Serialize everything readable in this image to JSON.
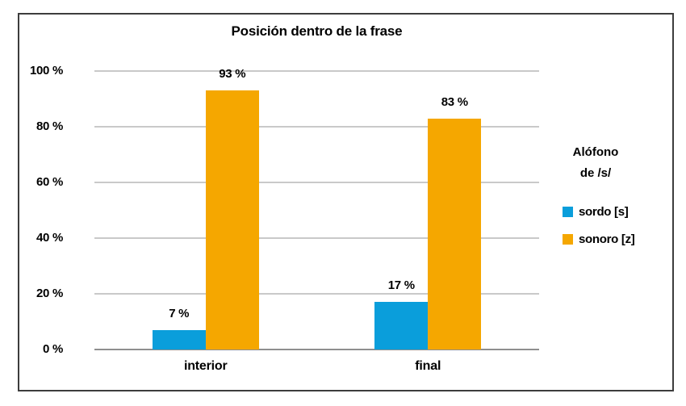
{
  "chart_data": {
    "type": "bar",
    "title": "Posición dentro de la frase",
    "categories": [
      "interior",
      "final"
    ],
    "series": [
      {
        "name": "sordo [s]",
        "color": "#0A9EDB",
        "values": [
          7,
          17
        ],
        "labels": [
          "7 %",
          "17 %"
        ]
      },
      {
        "name": "sonoro [z]",
        "color": "#F5A700",
        "values": [
          93,
          83
        ],
        "labels": [
          "93 %",
          "83 %"
        ]
      }
    ],
    "value_suffix": " %",
    "ylim": [
      0,
      100
    ],
    "yticks": [
      "0 %",
      "20 %",
      "40 %",
      "60 %",
      "80 %",
      "100 %"
    ],
    "grid": true,
    "legend_position": "right",
    "legend_title_lines": [
      "Alófono",
      "de /s/"
    ]
  },
  "colors": {
    "background": "#FFFFFF",
    "frame_border": "#3D3D3D",
    "gridline": "#C9C9C9",
    "baseline": "#8F8F8F",
    "text": "#000000"
  }
}
